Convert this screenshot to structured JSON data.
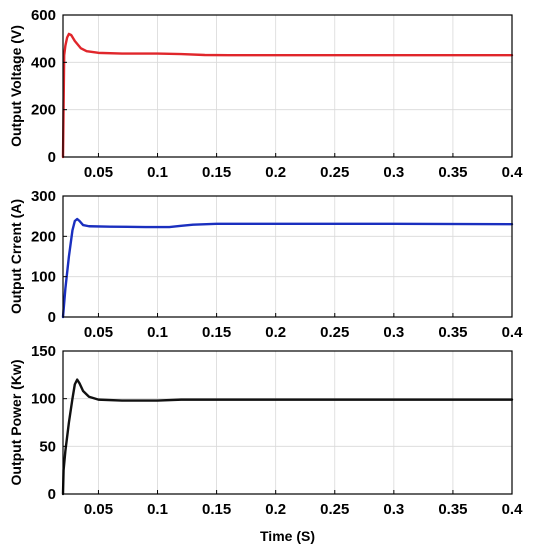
{
  "chart_data": [
    {
      "type": "line",
      "ylabel": "Output Voltage (V)",
      "xlabel": "",
      "xlim": [
        0.02,
        0.4
      ],
      "ylim": [
        0,
        600
      ],
      "xticks": [
        0.05,
        0.1,
        0.15,
        0.2,
        0.25,
        0.3,
        0.35,
        0.4
      ],
      "yticks": [
        0,
        200,
        400,
        600
      ],
      "xtick_labels": [
        "0.05",
        "0.1",
        "0.15",
        "0.2",
        "0.25",
        "0.3",
        "0.35",
        "0.4"
      ],
      "ytick_labels": [
        "0",
        "200",
        "400",
        "600"
      ],
      "grid": true,
      "series": [
        {
          "color": "#e0262b",
          "points": [
            [
              0.02,
              0
            ],
            [
              0.021,
              430
            ],
            [
              0.022,
              470
            ],
            [
              0.0235,
              505
            ],
            [
              0.025,
              520
            ],
            [
              0.027,
              515
            ],
            [
              0.03,
              490
            ],
            [
              0.035,
              460
            ],
            [
              0.04,
              447
            ],
            [
              0.05,
              440
            ],
            [
              0.07,
              437
            ],
            [
              0.1,
              437
            ],
            [
              0.12,
              435
            ],
            [
              0.14,
              431
            ],
            [
              0.16,
              430
            ],
            [
              0.2,
              430
            ],
            [
              0.4,
              430
            ]
          ]
        }
      ]
    },
    {
      "type": "line",
      "ylabel": "Output Crrent (A)",
      "xlabel": "",
      "xlim": [
        0.02,
        0.4
      ],
      "ylim": [
        0,
        300
      ],
      "xticks": [
        0.05,
        0.1,
        0.15,
        0.2,
        0.25,
        0.3,
        0.35,
        0.4
      ],
      "yticks": [
        0,
        100,
        200,
        300
      ],
      "xtick_labels": [
        "0.05",
        "0.1",
        "0.15",
        "0.2",
        "0.25",
        "0.3",
        "0.35",
        "0.4"
      ],
      "ytick_labels": [
        "0",
        "100",
        "200",
        "300"
      ],
      "grid": true,
      "series": [
        {
          "color": "#1a2fbf",
          "points": [
            [
              0.02,
              0
            ],
            [
              0.022,
              70
            ],
            [
              0.025,
              150
            ],
            [
              0.028,
              215
            ],
            [
              0.03,
              238
            ],
            [
              0.032,
              243
            ],
            [
              0.034,
              238
            ],
            [
              0.037,
              228
            ],
            [
              0.042,
              225
            ],
            [
              0.06,
              224
            ],
            [
              0.09,
              223
            ],
            [
              0.11,
              223
            ],
            [
              0.12,
              226
            ],
            [
              0.13,
              229
            ],
            [
              0.15,
              231
            ],
            [
              0.2,
              231
            ],
            [
              0.3,
              231
            ],
            [
              0.4,
              230
            ]
          ]
        }
      ]
    },
    {
      "type": "line",
      "ylabel": "Output Power (Kw)",
      "xlabel": "Time (S)",
      "xlim": [
        0.02,
        0.4
      ],
      "ylim": [
        0,
        150
      ],
      "xticks": [
        0.05,
        0.1,
        0.15,
        0.2,
        0.25,
        0.3,
        0.35,
        0.4
      ],
      "yticks": [
        0,
        50,
        100,
        150
      ],
      "xtick_labels": [
        "0.05",
        "0.1",
        "0.15",
        "0.2",
        "0.25",
        "0.3",
        "0.35",
        "0.4"
      ],
      "ytick_labels": [
        "0",
        "50",
        "100",
        "150"
      ],
      "grid": true,
      "series": [
        {
          "color": "#111111",
          "points": [
            [
              0.02,
              0
            ],
            [
              0.0205,
              25
            ],
            [
              0.022,
              45
            ],
            [
              0.025,
              75
            ],
            [
              0.028,
              100
            ],
            [
              0.03,
              115
            ],
            [
              0.032,
              120
            ],
            [
              0.034,
              116
            ],
            [
              0.037,
              108
            ],
            [
              0.042,
              102
            ],
            [
              0.05,
              99
            ],
            [
              0.07,
              98
            ],
            [
              0.1,
              98
            ],
            [
              0.12,
              99
            ],
            [
              0.15,
              99
            ],
            [
              0.2,
              99
            ],
            [
              0.3,
              99
            ],
            [
              0.4,
              99
            ]
          ]
        }
      ]
    }
  ]
}
